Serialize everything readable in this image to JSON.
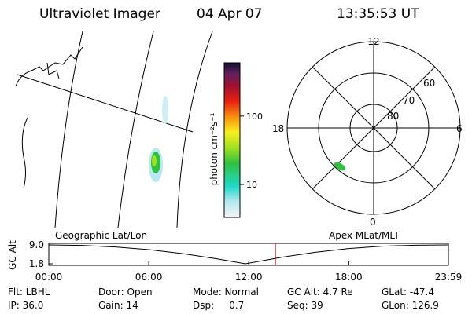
{
  "header": {
    "title": "Ultraviolet Imager",
    "date": "04 Apr 07",
    "time": "13:35:53 UT"
  },
  "colorbar": {
    "label": "photon cm⁻²s⁻¹",
    "scale": "log",
    "lim": [
      3.3,
      600
    ],
    "ticks": [
      10,
      100
    ]
  },
  "polar": {
    "mlt_labels": [
      "12",
      "6",
      "0",
      "18"
    ],
    "lat_labels": [
      "60",
      "70",
      "80"
    ]
  },
  "chart_data": {
    "type": "line",
    "left_label": "Geographic Lat/Lon",
    "right_label": "Apex MLat/MLT",
    "ylabel": "GC Alt",
    "x": [
      0,
      2,
      4,
      6,
      8,
      10,
      11.8,
      14,
      16,
      18,
      20,
      22,
      23.98
    ],
    "values": [
      9.0,
      8.8,
      8.2,
      7.2,
      5.7,
      3.8,
      1.8,
      4.3,
      6.2,
      7.6,
      8.5,
      8.9,
      9.0
    ],
    "color": "#000000",
    "marker_x": 13.6,
    "marker_color": "#cc0000",
    "xlim": [
      0,
      23.98
    ],
    "ylim": [
      1.8,
      9.0
    ],
    "xticks": [
      {
        "value": 0,
        "label": "00:00"
      },
      {
        "value": 6,
        "label": "06:00"
      },
      {
        "value": 12,
        "label": "12:00"
      },
      {
        "value": 18,
        "label": "18:00"
      },
      {
        "value": 23.98,
        "label": "23:59"
      }
    ],
    "yticks": [
      1.8,
      {
        "value": 9.0,
        "label": "9.0"
      }
    ]
  },
  "footer": [
    [
      "Flt: LBHL",
      "Door: Open",
      "Mode: Normal",
      "GC Alt: 4.7 Re",
      "GLat: -47.4"
    ],
    [
      "IP: 36.0",
      "Gain: 14",
      "Dsp:     0.7",
      "Seq: 39",
      "GLon: 126.9"
    ]
  ]
}
